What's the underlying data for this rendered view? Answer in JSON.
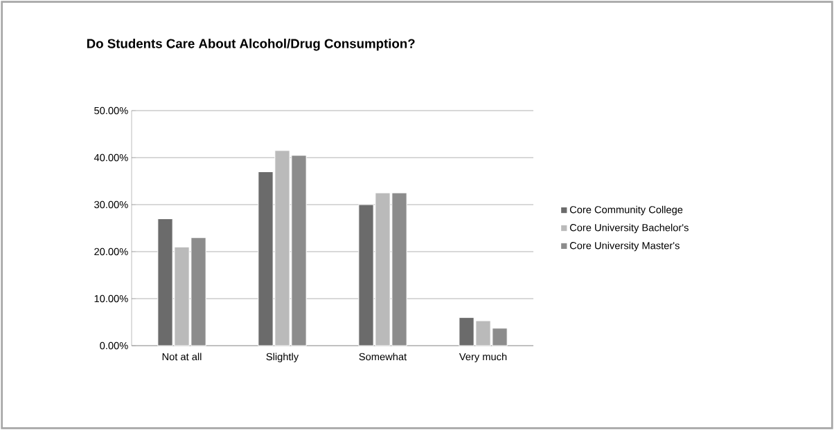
{
  "chart_data": {
    "type": "bar",
    "title": "Do Students Care About Alcohol/Drug Consumption?",
    "categories": [
      "Not at all",
      "Slightly",
      "Somewhat",
      "Very much"
    ],
    "series": [
      {
        "name": "Core Community College",
        "color": "#6b6b6b",
        "values": [
          27,
          37,
          30,
          6
        ]
      },
      {
        "name": "Core University Bachelor's",
        "color": "#bababa",
        "values": [
          21,
          41.5,
          32.5,
          5.3
        ]
      },
      {
        "name": "Core University Master's",
        "color": "#8c8c8c",
        "values": [
          23,
          40.5,
          32.5,
          3.7
        ]
      }
    ],
    "ylim": [
      0,
      50
    ],
    "yticks": [
      {
        "value": 0,
        "label": "0.00%"
      },
      {
        "value": 10,
        "label": "10.00%"
      },
      {
        "value": 20,
        "label": "20.00%"
      },
      {
        "value": 30,
        "label": "30.00%"
      },
      {
        "value": 40,
        "label": "40.00%"
      },
      {
        "value": 50,
        "label": "50.00%"
      }
    ],
    "grid": "y",
    "legend": "right"
  }
}
